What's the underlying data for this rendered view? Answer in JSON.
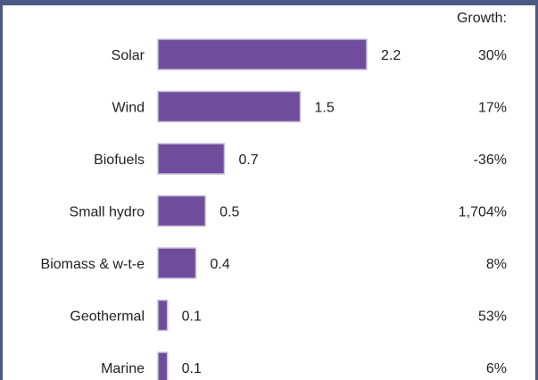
{
  "colors": {
    "bar_fill": "#6f4d9c",
    "bar_stroke": "#c9bfdb",
    "frame": "#4b5a85",
    "text": "#222222"
  },
  "chart_data": {
    "type": "bar",
    "orientation": "horizontal",
    "categories": [
      "Solar",
      "Wind",
      "Biofuels",
      "Small hydro",
      "Biomass & w-t-e",
      "Geothermal",
      "Marine"
    ],
    "values": [
      2.2,
      1.5,
      0.7,
      0.5,
      0.4,
      0.1,
      0.1
    ],
    "value_labels": [
      "2.2",
      "1.5",
      "0.7",
      "0.5",
      "0.4",
      "0.1",
      "0.1"
    ],
    "growth_header": "Growth:",
    "growth": [
      "30%",
      "17%",
      "-36%",
      "1,704%",
      "8%",
      "53%",
      "6%"
    ],
    "xlim": [
      0,
      2.2
    ],
    "grid": false,
    "legend": "none"
  }
}
